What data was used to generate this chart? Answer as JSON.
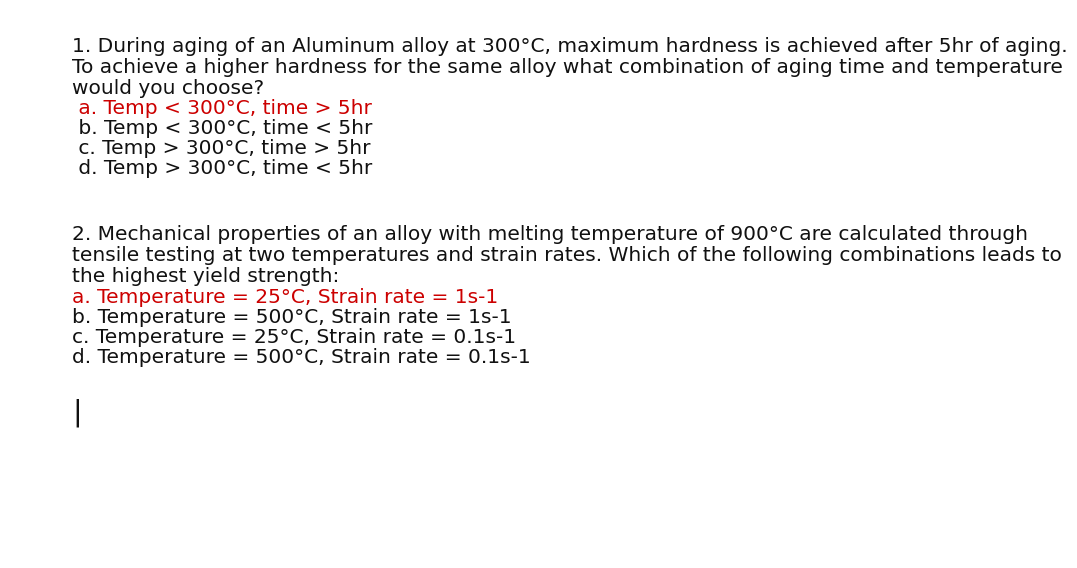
{
  "background_color": "#ffffff",
  "q1_text_lines": [
    "1. During aging of an Aluminum alloy at 300°C, maximum hardness is achieved after 5hr of aging.",
    "To achieve a higher hardness for the same alloy what combination of aging time and temperature",
    "would you choose?"
  ],
  "q1_options": [
    {
      "text": " a. Temp < 300°C, time > 5hr",
      "color": "#cc0000"
    },
    {
      "text": " b. Temp < 300°C, time < 5hr",
      "color": "#111111"
    },
    {
      "text": " c. Temp > 300°C, time > 5hr",
      "color": "#111111"
    },
    {
      "text": " d. Temp > 300°C, time < 5hr",
      "color": "#111111"
    }
  ],
  "q2_text_lines": [
    "2. Mechanical properties of an alloy with melting temperature of 900°C are calculated through",
    "tensile testing at two temperatures and strain rates. Which of the following combinations leads to",
    "the highest yield strength:"
  ],
  "q2_options": [
    {
      "text": "a. Temperature = 25°C, Strain rate = 1s-1",
      "color": "#cc0000"
    },
    {
      "text": "b. Temperature = 500°C, Strain rate = 1s-1",
      "color": "#111111"
    },
    {
      "text": "c. Temperature = 25°C, Strain rate = 0.1s-1",
      "color": "#111111"
    },
    {
      "text": "d. Temperature = 500°C, Strain rate = 0.1s-1",
      "color": "#111111"
    }
  ],
  "cursor_text": "|",
  "font_size_body": 14.5,
  "font_size_options": 14.5,
  "font_family": "DejaVu Sans"
}
